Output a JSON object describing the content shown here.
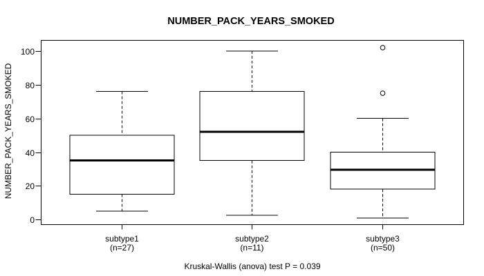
{
  "chart_data": {
    "type": "boxplot",
    "title": "NUMBER_PACK_YEARS_SMOKED",
    "ylabel": "NUMBER_PACK_YEARS_SMOKED",
    "xlabel": "",
    "annotation": "Kruskal-Wallis (anova) test P = 0.039",
    "ylim": [
      0,
      100
    ],
    "yticks": [
      0,
      20,
      40,
      60,
      80,
      100
    ],
    "grid": false,
    "legend": "none",
    "categories": [
      "subtype1",
      "subtype2",
      "subtype3"
    ],
    "category_sublabels": [
      "(n=27)",
      "(n=11)",
      "(n=50)"
    ],
    "sample_sizes": [
      27,
      11,
      50
    ],
    "series": [
      {
        "name": "subtype1",
        "n": 27,
        "whisker_low": 5,
        "q1": 15,
        "median": 35,
        "q3": 50,
        "whisker_high": 76,
        "outliers": []
      },
      {
        "name": "subtype2",
        "n": 11,
        "whisker_low": 2.5,
        "q1": 35,
        "median": 52,
        "q3": 76,
        "whisker_high": 100,
        "outliers": []
      },
      {
        "name": "subtype3",
        "n": 50,
        "whisker_low": 1,
        "q1": 18,
        "median": 29.5,
        "q3": 40,
        "whisker_high": 60,
        "outliers": [
          75,
          102
        ]
      }
    ],
    "colors": {
      "line": "#000000",
      "box_fill": "#ffffff",
      "background": "#ffffff",
      "text": "#000000"
    }
  }
}
